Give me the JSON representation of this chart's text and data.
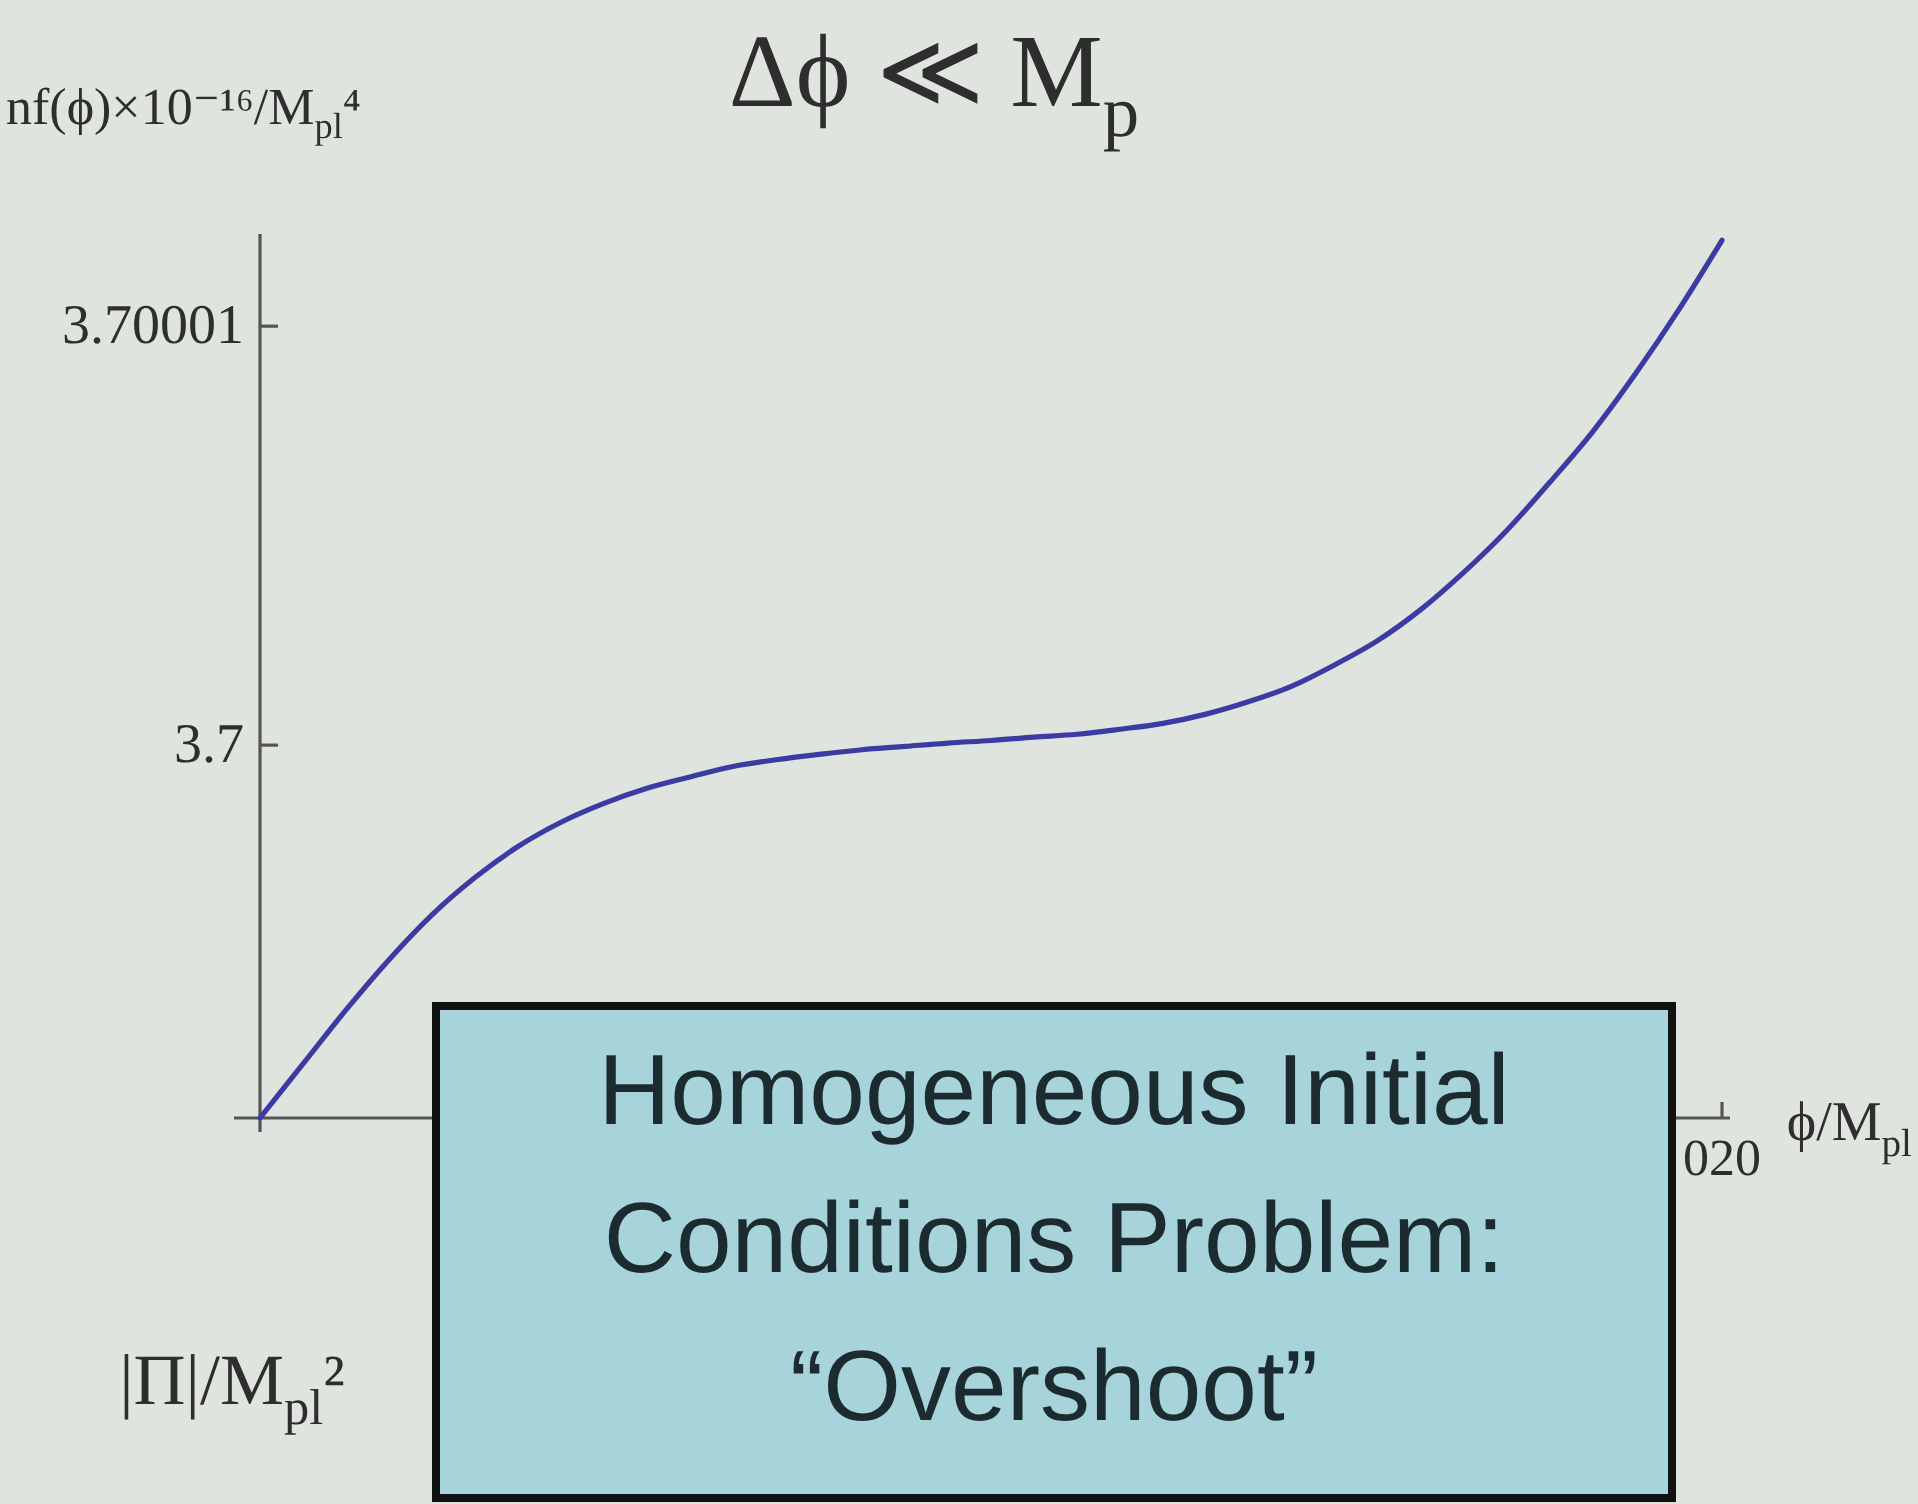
{
  "chart_data": {
    "type": "line",
    "title": "Δϕ ≪ M$_{p}$",
    "xlabel": "ϕ/M$_{pl}$",
    "ylabel": "nf(ϕ)×10⁻¹⁶/M$_{pl}$⁴",
    "categories": [
      null,
      null,
      null,
      null,
      null,
      null,
      null,
      null,
      null,
      null,
      null,
      null,
      null,
      null,
      null,
      null,
      null,
      null,
      null,
      null,
      null,
      null,
      null,
      null,
      null,
      null,
      null,
      null,
      null,
      null,
      null,
      null,
      null,
      null,
      "020"
    ],
    "series": [
      {
        "color": "#3b3ba3",
        "values": [
          3.6999911,
          3.69999239,
          3.69999368,
          3.69999488,
          3.69999595,
          3.69999684,
          3.69999758,
          3.69999816,
          3.69999861,
          3.69999897,
          3.69999924,
          3.69999949,
          3.69999965,
          3.69999978,
          3.69999989,
          3.69999997,
          3.70000005,
          3.70000011,
          3.70000019,
          3.70000026,
          3.70000038,
          3.70000052,
          3.70000074,
          3.70000104,
          3.70000141,
          3.70000192,
          3.7000025,
          3.70000324,
          3.70000413,
          3.70000513,
          3.70000628,
          3.70000749,
          3.70000888,
          3.7000104,
          3.70001205
        ]
      }
    ],
    "ylim": [
      3.6999911,
      3.7000122
    ],
    "yticks": [
      3.7,
      3.70001
    ],
    "annotations": [
      "Homogeneous Initial Conditions Problem: “Overshoot”",
      "|Π|/M$_{pl}$²"
    ]
  }
}
